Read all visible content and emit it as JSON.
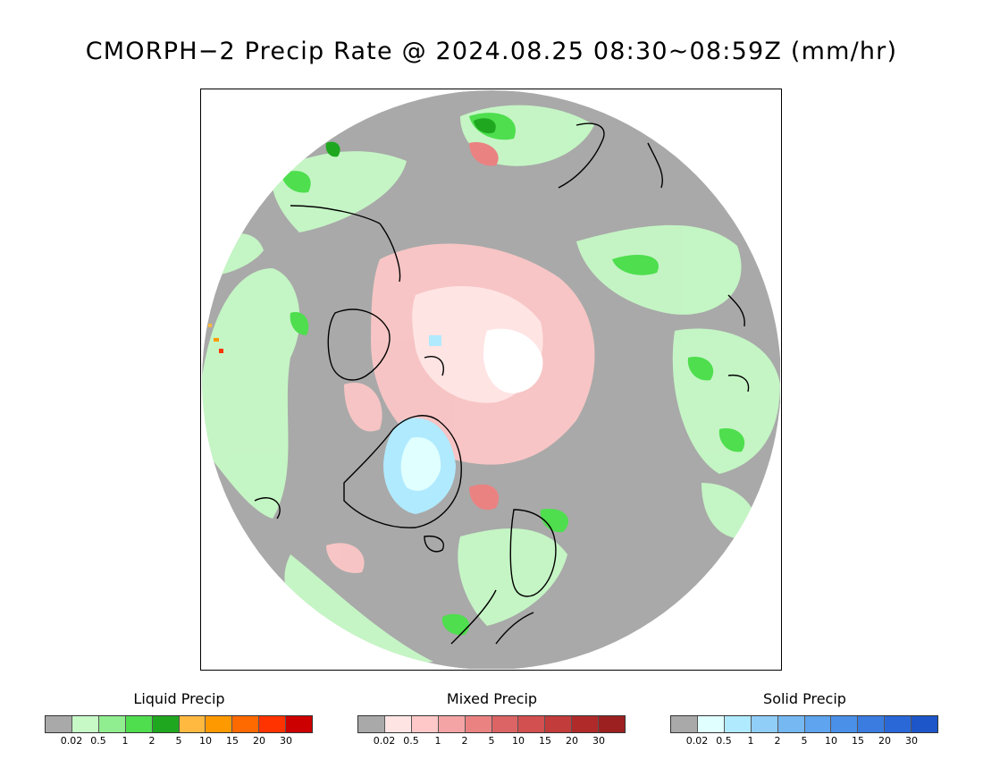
{
  "title": "CMORPH−2 Precip Rate @ 2024.08.25 08:30~08:59Z (mm/hr)",
  "map": {
    "projection": "polar stereographic (north pole)",
    "background_color": "#a9a9a9",
    "coastline_color": "#000000"
  },
  "legends": [
    {
      "id": "liquid",
      "title": "Liquid Precip",
      "colors": [
        "#a9a9a9",
        "#c6f9c6",
        "#90ee90",
        "#4ede4e",
        "#1fa81f",
        "#ffb940",
        "#ff9900",
        "#ff6a00",
        "#ff3300",
        "#cc0000"
      ],
      "ticks": [
        "0.02",
        "0.5",
        "1",
        "2",
        "5",
        "10",
        "15",
        "20",
        "30"
      ]
    },
    {
      "id": "mixed",
      "title": "Mixed Precip",
      "colors": [
        "#a9a9a9",
        "#ffe4e4",
        "#ffc8c8",
        "#f4a4a4",
        "#ea8282",
        "#dc6464",
        "#d25050",
        "#c23c3c",
        "#b02a2a",
        "#9c2020"
      ],
      "ticks": [
        "0.02",
        "0.5",
        "1",
        "2",
        "5",
        "10",
        "15",
        "20",
        "30"
      ]
    },
    {
      "id": "solid",
      "title": "Solid Precip",
      "colors": [
        "#a9a9a9",
        "#e0ffff",
        "#b0eaff",
        "#90cdf7",
        "#76b8f2",
        "#5ea4ee",
        "#4a90e8",
        "#3a7ce0",
        "#2a68d8",
        "#1c56c8"
      ],
      "ticks": [
        "0.02",
        "0.5",
        "1",
        "2",
        "5",
        "10",
        "15",
        "20",
        "30"
      ]
    }
  ]
}
